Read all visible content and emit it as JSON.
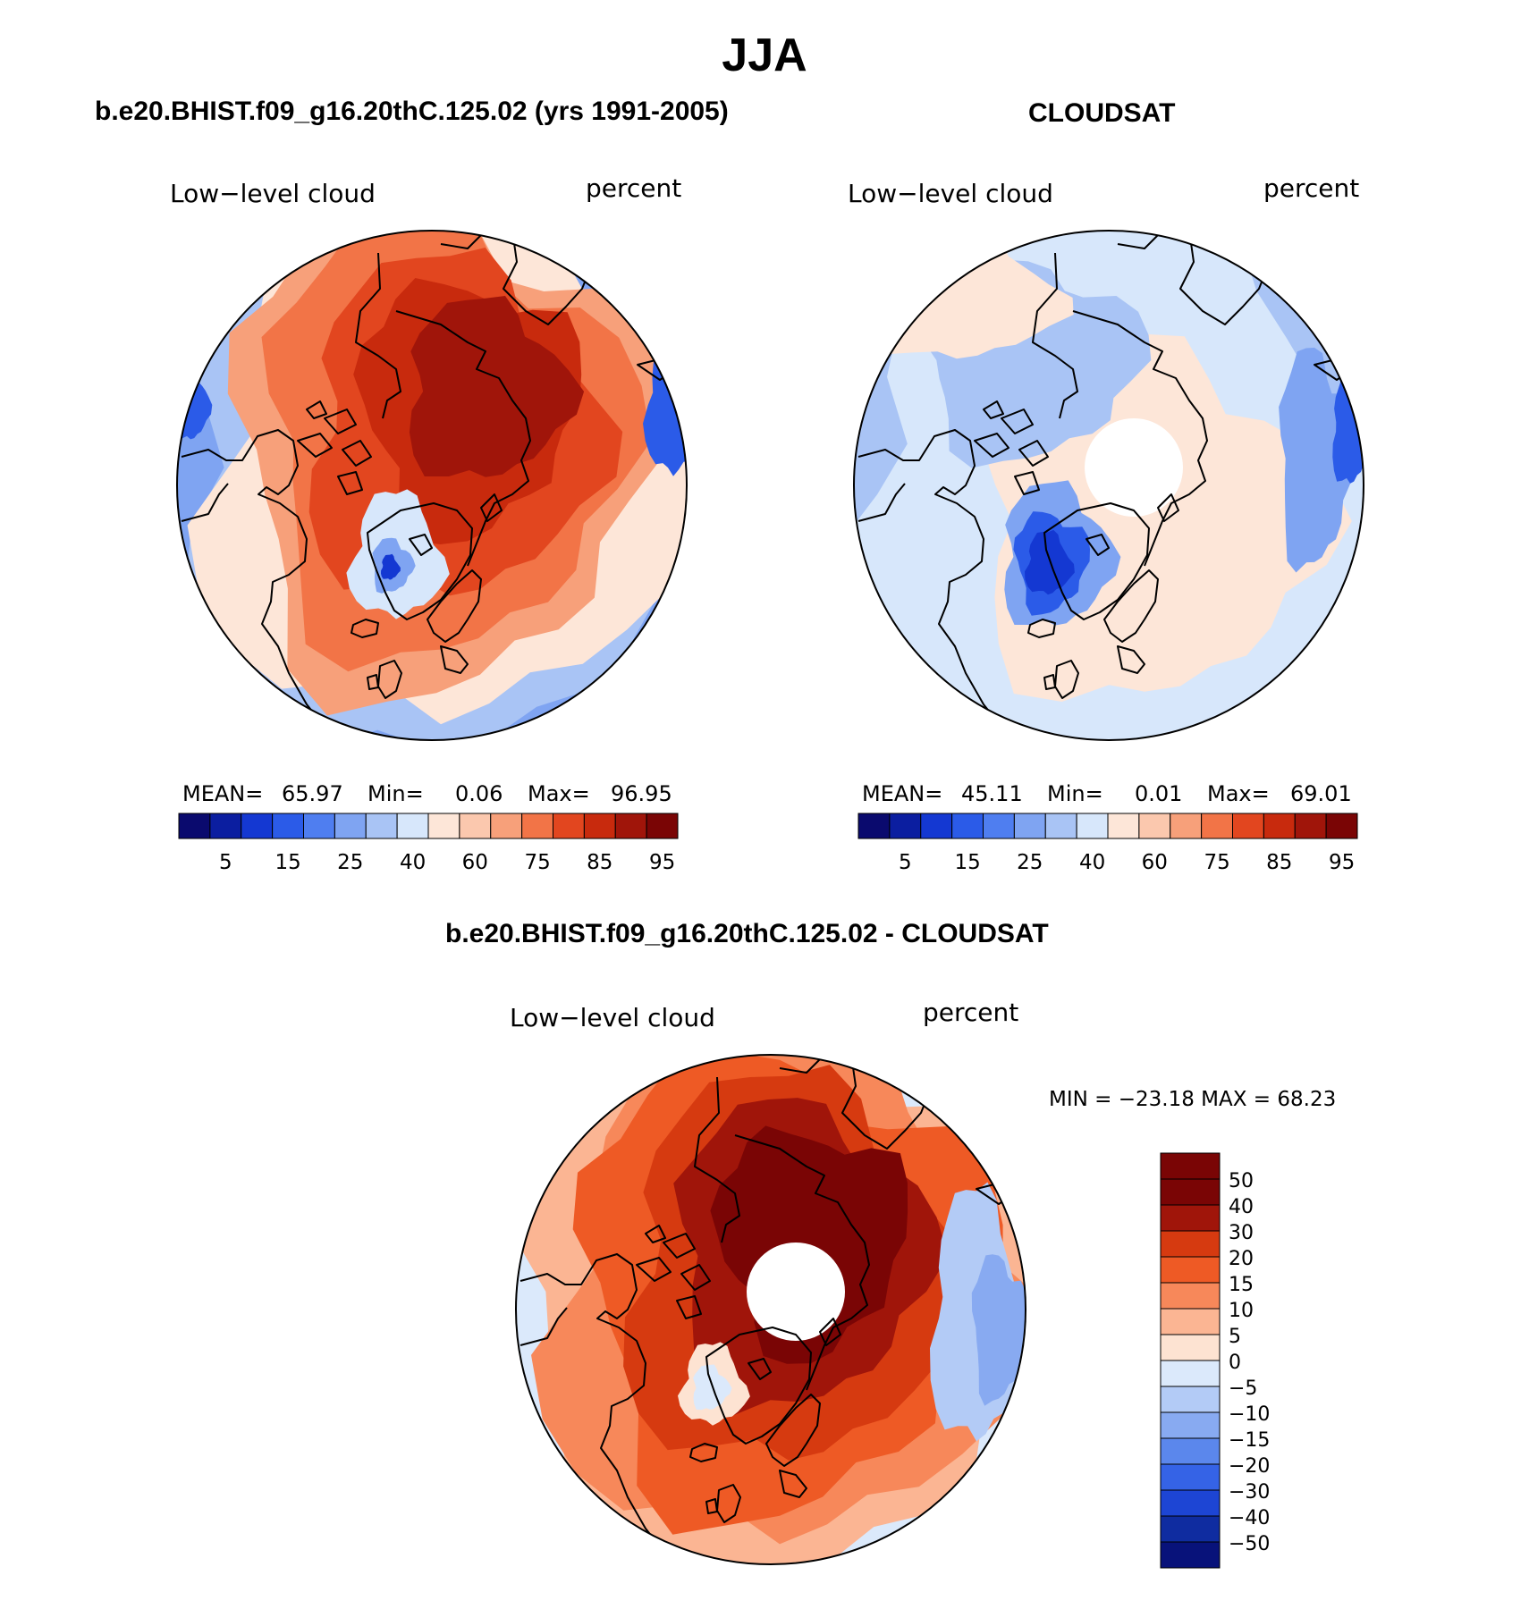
{
  "title": "JJA",
  "panels": [
    {
      "id": "model",
      "heading": "b.e20.BHIST.f09_g16.20thC.125.02 (yrs 1991-2005)",
      "variable": "Low−level cloud",
      "units": "percent",
      "stats": {
        "mean_label": "MEAN=",
        "mean": "65.97",
        "min_label": "Min=",
        "min": "0.06",
        "max_label": "Max=",
        "max": "96.95"
      },
      "colorbar_ticks": [
        "5",
        "15",
        "25",
        "40",
        "60",
        "75",
        "85",
        "95"
      ]
    },
    {
      "id": "obs",
      "heading": "CLOUDSAT",
      "variable": "Low−level cloud",
      "units": "percent",
      "stats": {
        "mean_label": "MEAN=",
        "mean": "45.11",
        "min_label": "Min=",
        "min": "0.01",
        "max_label": "Max=",
        "max": "69.01"
      },
      "colorbar_ticks": [
        "5",
        "15",
        "25",
        "40",
        "60",
        "75",
        "85",
        "95"
      ]
    },
    {
      "id": "diff",
      "heading": "b.e20.BHIST.f09_g16.20thC.125.02 - CLOUDSAT",
      "variable": "Low−level cloud",
      "units": "percent",
      "minmax_text": "MIN = −23.18 MAX =   68.23",
      "colorbar_ticks": [
        "50",
        "40",
        "30",
        "20",
        "15",
        "10",
        "5",
        "0",
        "−5",
        "−10",
        "−15",
        "−20",
        "−30",
        "−40",
        "−50"
      ]
    }
  ],
  "palettes": {
    "abs": [
      "#0a0a6e",
      "#0b1ea0",
      "#1438d2",
      "#2b5be8",
      "#4f7ef0",
      "#7fa4f2",
      "#a9c4f5",
      "#d7e7fb",
      "#fde6d8",
      "#fbc8ae",
      "#f7a07a",
      "#f27447",
      "#e2461f",
      "#c82a0d",
      "#a0150a",
      "#7a0505"
    ],
    "diff": [
      "#7a0505",
      "#a0150a",
      "#d63a10",
      "#ee5a25",
      "#f7885a",
      "#fbb593",
      "#fde3d2",
      "#dbe9fb",
      "#b3cbf6",
      "#88aaf1",
      "#5b87ec",
      "#3563e6",
      "#1d45d4",
      "#0f2ca0",
      "#08127a"
    ]
  },
  "map_colors": {
    "ocean_outer": "#7fa4f2",
    "land_line": "#000000"
  }
}
